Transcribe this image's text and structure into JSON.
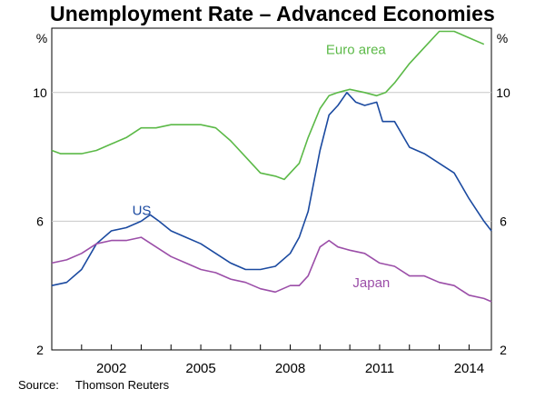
{
  "chart_data": {
    "type": "line",
    "title": "Unemployment Rate – Advanced Economies",
    "ylabel_left": "%",
    "ylabel_right": "%",
    "xlim": [
      2000.0,
      2014.75
    ],
    "ylim": [
      2,
      12
    ],
    "yticks": [
      2,
      6,
      10
    ],
    "xticks": [
      2002,
      2005,
      2008,
      2011,
      2014
    ],
    "grid": "horizontal",
    "series": [
      {
        "name": "Euro area",
        "color": "#5bb947",
        "points": [
          [
            2000.0,
            8.2
          ],
          [
            2000.3,
            8.1
          ],
          [
            2001.0,
            8.1
          ],
          [
            2001.5,
            8.2
          ],
          [
            2002.0,
            8.4
          ],
          [
            2002.5,
            8.6
          ],
          [
            2003.0,
            8.9
          ],
          [
            2003.5,
            8.9
          ],
          [
            2004.0,
            9.0
          ],
          [
            2004.5,
            9.0
          ],
          [
            2005.0,
            9.0
          ],
          [
            2005.5,
            8.9
          ],
          [
            2006.0,
            8.5
          ],
          [
            2006.5,
            8.0
          ],
          [
            2007.0,
            7.5
          ],
          [
            2007.5,
            7.4
          ],
          [
            2007.8,
            7.3
          ],
          [
            2008.0,
            7.5
          ],
          [
            2008.3,
            7.8
          ],
          [
            2008.6,
            8.6
          ],
          [
            2009.0,
            9.5
          ],
          [
            2009.3,
            9.9
          ],
          [
            2009.6,
            10.0
          ],
          [
            2010.0,
            10.1
          ],
          [
            2010.5,
            10.0
          ],
          [
            2010.9,
            9.9
          ],
          [
            2011.2,
            10.0
          ],
          [
            2011.5,
            10.3
          ],
          [
            2012.0,
            10.9
          ],
          [
            2012.5,
            11.4
          ],
          [
            2013.0,
            11.9
          ],
          [
            2013.5,
            11.9
          ],
          [
            2014.0,
            11.7
          ],
          [
            2014.5,
            11.5
          ]
        ]
      },
      {
        "name": "US",
        "color": "#1b4aa0",
        "points": [
          [
            2000.0,
            4.0
          ],
          [
            2000.5,
            4.1
          ],
          [
            2001.0,
            4.5
          ],
          [
            2001.5,
            5.3
          ],
          [
            2002.0,
            5.7
          ],
          [
            2002.5,
            5.8
          ],
          [
            2003.0,
            6.0
          ],
          [
            2003.3,
            6.2
          ],
          [
            2003.6,
            6.0
          ],
          [
            2004.0,
            5.7
          ],
          [
            2004.5,
            5.5
          ],
          [
            2005.0,
            5.3
          ],
          [
            2005.5,
            5.0
          ],
          [
            2006.0,
            4.7
          ],
          [
            2006.5,
            4.5
          ],
          [
            2007.0,
            4.5
          ],
          [
            2007.5,
            4.6
          ],
          [
            2008.0,
            5.0
          ],
          [
            2008.3,
            5.5
          ],
          [
            2008.6,
            6.3
          ],
          [
            2009.0,
            8.2
          ],
          [
            2009.3,
            9.3
          ],
          [
            2009.6,
            9.6
          ],
          [
            2009.9,
            10.0
          ],
          [
            2010.2,
            9.7
          ],
          [
            2010.5,
            9.6
          ],
          [
            2010.9,
            9.7
          ],
          [
            2011.1,
            9.1
          ],
          [
            2011.5,
            9.1
          ],
          [
            2012.0,
            8.3
          ],
          [
            2012.5,
            8.1
          ],
          [
            2013.0,
            7.8
          ],
          [
            2013.5,
            7.5
          ],
          [
            2014.0,
            6.7
          ],
          [
            2014.5,
            6.0
          ],
          [
            2014.75,
            5.7
          ]
        ]
      },
      {
        "name": "Japan",
        "color": "#9b4ea8",
        "points": [
          [
            2000.0,
            4.7
          ],
          [
            2000.5,
            4.8
          ],
          [
            2001.0,
            5.0
          ],
          [
            2001.5,
            5.3
          ],
          [
            2002.0,
            5.4
          ],
          [
            2002.5,
            5.4
          ],
          [
            2003.0,
            5.5
          ],
          [
            2003.5,
            5.2
          ],
          [
            2004.0,
            4.9
          ],
          [
            2004.5,
            4.7
          ],
          [
            2005.0,
            4.5
          ],
          [
            2005.5,
            4.4
          ],
          [
            2006.0,
            4.2
          ],
          [
            2006.5,
            4.1
          ],
          [
            2007.0,
            3.9
          ],
          [
            2007.5,
            3.8
          ],
          [
            2008.0,
            4.0
          ],
          [
            2008.3,
            4.0
          ],
          [
            2008.6,
            4.3
          ],
          [
            2009.0,
            5.2
          ],
          [
            2009.3,
            5.4
          ],
          [
            2009.6,
            5.2
          ],
          [
            2010.0,
            5.1
          ],
          [
            2010.5,
            5.0
          ],
          [
            2011.0,
            4.7
          ],
          [
            2011.5,
            4.6
          ],
          [
            2012.0,
            4.3
          ],
          [
            2012.5,
            4.3
          ],
          [
            2013.0,
            4.1
          ],
          [
            2013.5,
            4.0
          ],
          [
            2014.0,
            3.7
          ],
          [
            2014.5,
            3.6
          ],
          [
            2014.75,
            3.5
          ]
        ]
      }
    ]
  },
  "source": {
    "label": "Source:",
    "text": "Thomson Reuters"
  }
}
